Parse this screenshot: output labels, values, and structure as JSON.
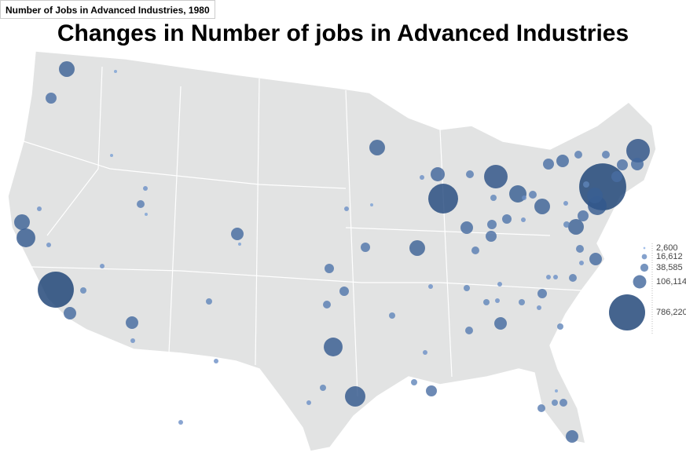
{
  "header": {
    "subtitle_box": "Number of Jobs in Advanced Industries, 1980",
    "title": "Changes in Number of jobs in Advanced Industries"
  },
  "bubbles": {
    "values": [
      148000,
      72500,
      5900,
      148000,
      213000,
      782000,
      94700,
      13300,
      13300,
      13300,
      23700,
      94700,
      13300,
      37000,
      13300,
      5900,
      5900,
      94700,
      5900,
      23700,
      13300,
      13300,
      148000,
      120000,
      534000,
      13300,
      5900,
      13300,
      53300,
      148000,
      53300,
      53300,
      37000,
      213000,
      250000,
      23700,
      13300,
      23700,
      23700,
      72500,
      13300,
      13300,
      23700,
      23700,
      13300,
      94700,
      37000,
      13300,
      23700,
      53300,
      13300,
      23700,
      13300,
      13300,
      37000,
      13300,
      94700,
      37000,
      148000,
      72500,
      213000,
      1331000,
      148000,
      23700,
      72500,
      72500,
      94700,
      333000,
      37000,
      37000,
      94700,
      72500,
      333000,
      37000,
      179000,
      23700,
      13300,
      37000,
      148000,
      94700,
      53300,
      53300,
      72500,
      13300,
      37000,
      13300,
      23700,
      5900,
      37000,
      37000,
      23700,
      94700
    ],
    "colors": [
      "#8cb0e6",
      "#173d72"
    ]
  },
  "legend": {
    "sizes": [
      {
        "value": 2600,
        "label": "2,600"
      },
      {
        "value": 16612,
        "label": "16,612"
      },
      {
        "value": 38585,
        "label": "38,585"
      },
      {
        "value": 106114,
        "label": "106,114"
      },
      {
        "value": 786220,
        "label": "786,220"
      }
    ]
  }
}
